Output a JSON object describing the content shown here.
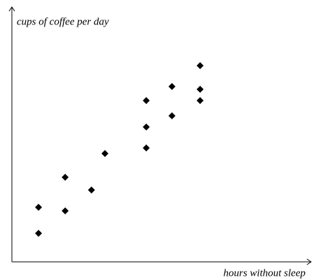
{
  "chart_data": {
    "type": "scatter",
    "xlabel": "hours without sleep",
    "ylabel": "cups of coffee per day",
    "x": [
      0.89,
      0.89,
      1.78,
      1.78,
      2.66,
      3.11,
      4.49,
      4.49,
      4.49,
      5.35,
      5.35,
      6.29,
      6.29,
      6.29
    ],
    "values": [
      1.12,
      2.14,
      2.0,
      3.32,
      2.82,
      4.25,
      4.47,
      5.29,
      6.33,
      5.73,
      6.88,
      6.33,
      6.77,
      7.7
    ],
    "color": "#000000",
    "xlim": [
      0,
      10
    ],
    "ylim": [
      0,
      10
    ]
  }
}
